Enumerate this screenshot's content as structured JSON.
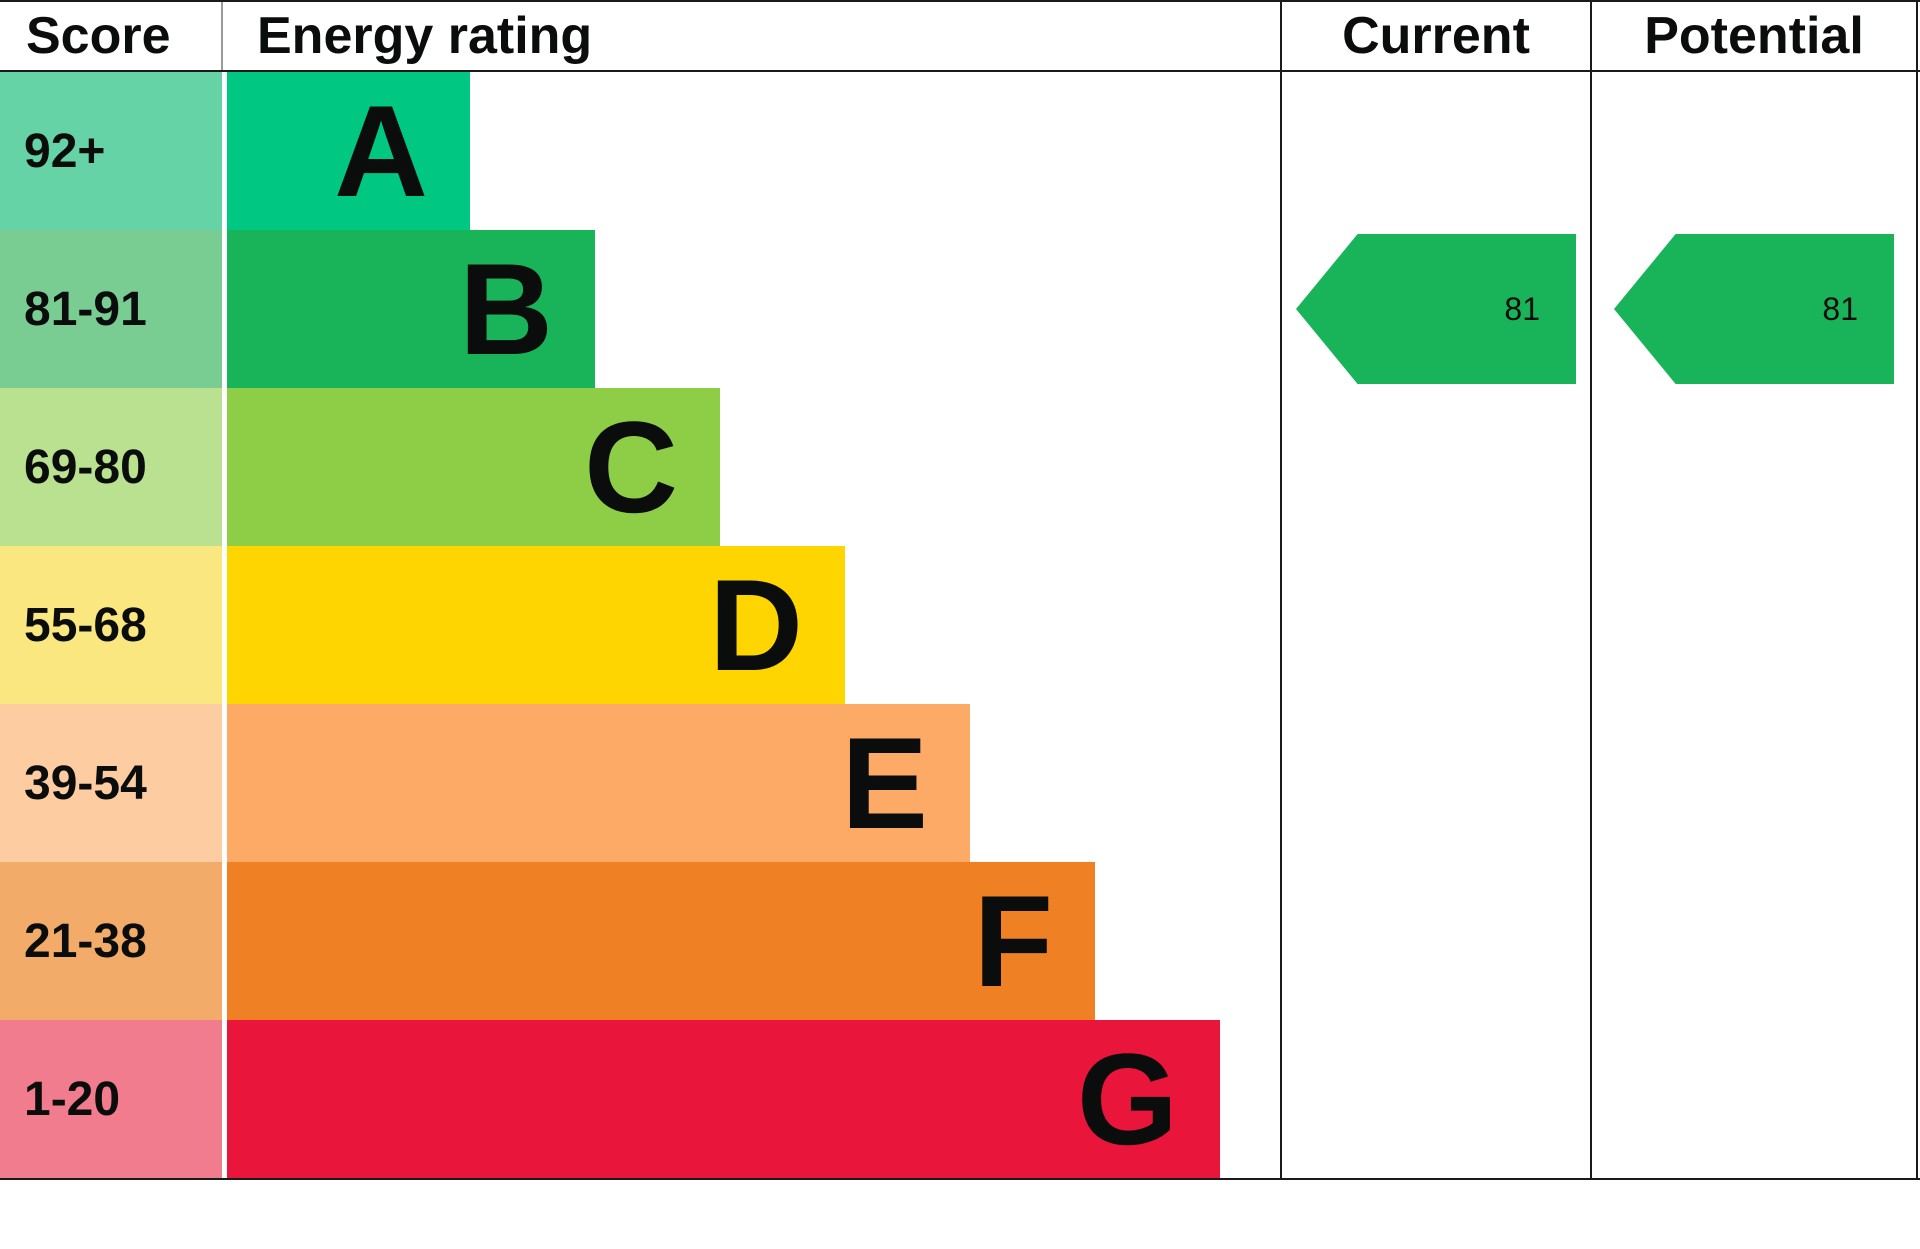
{
  "header": {
    "score": "Score",
    "energy_rating": "Energy rating",
    "current": "Current",
    "potential": "Potential"
  },
  "chart_data": {
    "type": "bar",
    "subtype": "epc-energy-efficiency-rating",
    "title": "Energy rating",
    "columns": [
      "Score",
      "Energy rating",
      "Current",
      "Potential"
    ],
    "bands": [
      {
        "score": "92+",
        "letter": "A",
        "color": "#00c781",
        "tint": "#66d3a6"
      },
      {
        "score": "81-91",
        "letter": "B",
        "color": "#19b459",
        "tint": "#79cd92"
      },
      {
        "score": "69-80",
        "letter": "C",
        "color": "#8dce46",
        "tint": "#b9e18f"
      },
      {
        "score": "55-68",
        "letter": "D",
        "color": "#ffd500",
        "tint": "#fae780"
      },
      {
        "score": "39-54",
        "letter": "E",
        "color": "#fcaa65",
        "tint": "#fdcda1"
      },
      {
        "score": "21-38",
        "letter": "F",
        "color": "#ef8023",
        "tint": "#f3ab6a"
      },
      {
        "score": "1-20",
        "letter": "G",
        "color": "#e9153b",
        "tint": "#f17c8e"
      }
    ],
    "current": {
      "value": 81,
      "band": "B",
      "arrow_color": "#19b459"
    },
    "potential": {
      "value": 81,
      "band": "B",
      "arrow_color": "#19b459"
    }
  }
}
